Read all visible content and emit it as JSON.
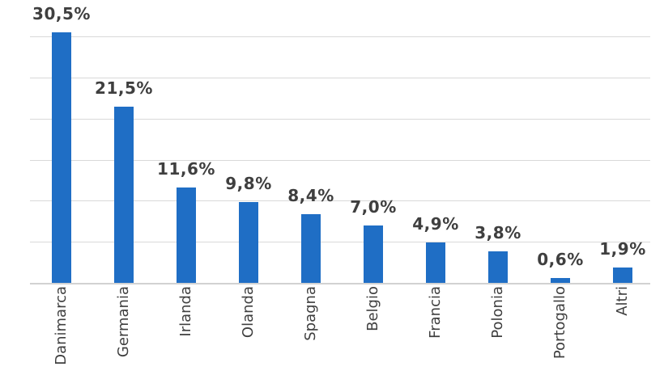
{
  "chart_data": {
    "type": "bar",
    "categories": [
      "Danimarca",
      "Germania",
      "Irlanda",
      "Olanda",
      "Spagna",
      "Belgio",
      "Francia",
      "Polonia",
      "Portogallo",
      "Altri"
    ],
    "values": [
      30.5,
      21.5,
      11.6,
      9.8,
      8.4,
      7.0,
      4.9,
      3.8,
      0.6,
      1.9
    ],
    "labels": [
      "30,5%",
      "21,5%",
      "11,6%",
      "9,8%",
      "8,4%",
      "7,0%",
      "4,9%",
      "3,8%",
      "0,6%",
      "1,9%"
    ],
    "title": "",
    "xlabel": "",
    "ylabel": "",
    "ylim": [
      0,
      30
    ],
    "gridline_step": 5,
    "grid": true,
    "legend": false,
    "bar_color": "#1f6ec5",
    "gridline_color": "#d9d9d9",
    "label_color": "#3f3f3f",
    "background_color": "#ffffff"
  }
}
